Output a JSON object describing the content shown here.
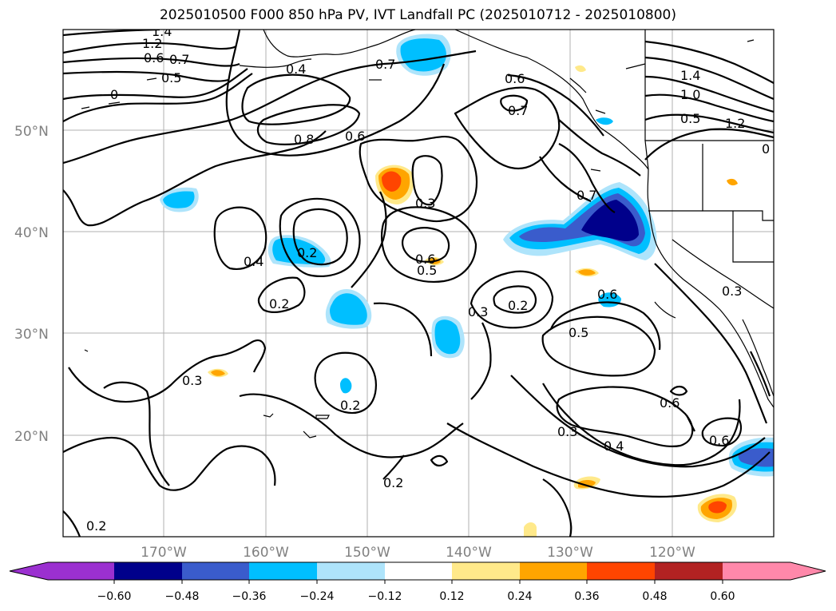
{
  "title": "2025010500 F000 850 hPa PV, IVT Landfall PC (2025010712 - 2025010800)",
  "lat_labels": [
    "50°N",
    "40°N",
    "30°N",
    "20°N"
  ],
  "lon_labels": [
    "170°W",
    "160°W",
    "150°W",
    "140°W",
    "130°W",
    "120°W"
  ],
  "contour_labels": [
    "1.4",
    "1.2",
    "0.6",
    "0.7",
    "0.5",
    "0.4",
    "0.7",
    "0.6",
    "0.7",
    "1.4",
    "1.0",
    "0.5",
    "1.2",
    "0",
    "0.8",
    "0.6",
    "0.3",
    "0.7",
    "0.4",
    "0.2",
    "0.6",
    "0.5",
    "0.2",
    "0.3",
    "0.2",
    "0.6",
    "0.5",
    "0.3",
    "0.3",
    "0.2",
    "0.6",
    "0.3",
    "0.4",
    "0.6",
    "0.2",
    "0.2",
    "0"
  ],
  "colorbar": {
    "tick_labels": [
      "−0.60",
      "−0.48",
      "−0.36",
      "−0.24",
      "−0.12",
      "0.12",
      "0.24",
      "0.36",
      "0.48",
      "0.60"
    ],
    "colors": [
      "#9b30d0",
      "#00008b",
      "#3a5ccc",
      "#00bfff",
      "#aee4fb",
      "#ffffff",
      "#ffe98a",
      "#ffa500",
      "#ff4500",
      "#b22222",
      "#ff88aa"
    ]
  }
}
